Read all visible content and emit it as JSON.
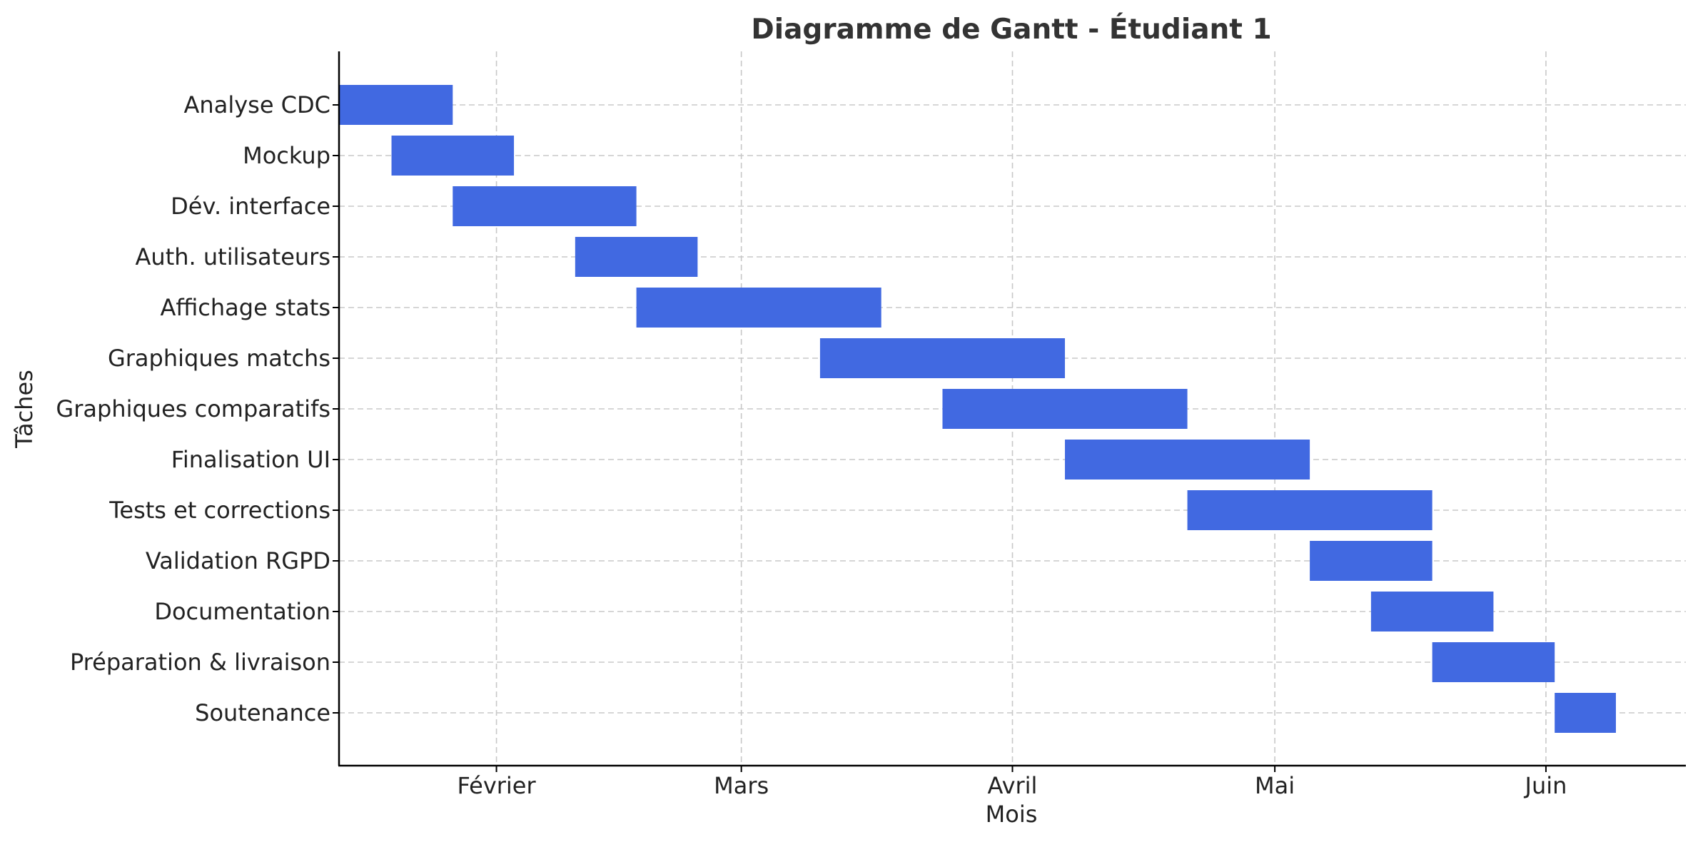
{
  "chart_data": {
    "type": "gantt",
    "title": "Diagramme de Gantt - Étudiant 1",
    "xlabel": "Mois",
    "ylabel": "Tâches",
    "bar_color": "#4169E1",
    "x_ticks": [
      {
        "label": "Février",
        "day": 32
      },
      {
        "label": "Mars",
        "day": 60
      },
      {
        "label": "Avril",
        "day": 91
      },
      {
        "label": "Mai",
        "day": 121
      },
      {
        "label": "Juin",
        "day": 152
      }
    ],
    "xlim": [
      14,
      168
    ],
    "tasks": [
      {
        "name": "Analyse CDC",
        "start": 14,
        "end": 27
      },
      {
        "name": "Mockup",
        "start": 20,
        "end": 34
      },
      {
        "name": "Dév. interface",
        "start": 27,
        "end": 48
      },
      {
        "name": "Auth. utilisateurs",
        "start": 41,
        "end": 55
      },
      {
        "name": "Affichage stats",
        "start": 48,
        "end": 76
      },
      {
        "name": "Graphiques matchs",
        "start": 69,
        "end": 97
      },
      {
        "name": "Graphiques comparatifs",
        "start": 83,
        "end": 111
      },
      {
        "name": "Finalisation UI",
        "start": 97,
        "end": 125
      },
      {
        "name": "Tests et corrections",
        "start": 111,
        "end": 139
      },
      {
        "name": "Validation RGPD",
        "start": 125,
        "end": 139
      },
      {
        "name": "Documentation",
        "start": 132,
        "end": 146
      },
      {
        "name": "Préparation & livraison",
        "start": 139,
        "end": 153
      },
      {
        "name": "Soutenance",
        "start": 153,
        "end": 160
      }
    ]
  }
}
